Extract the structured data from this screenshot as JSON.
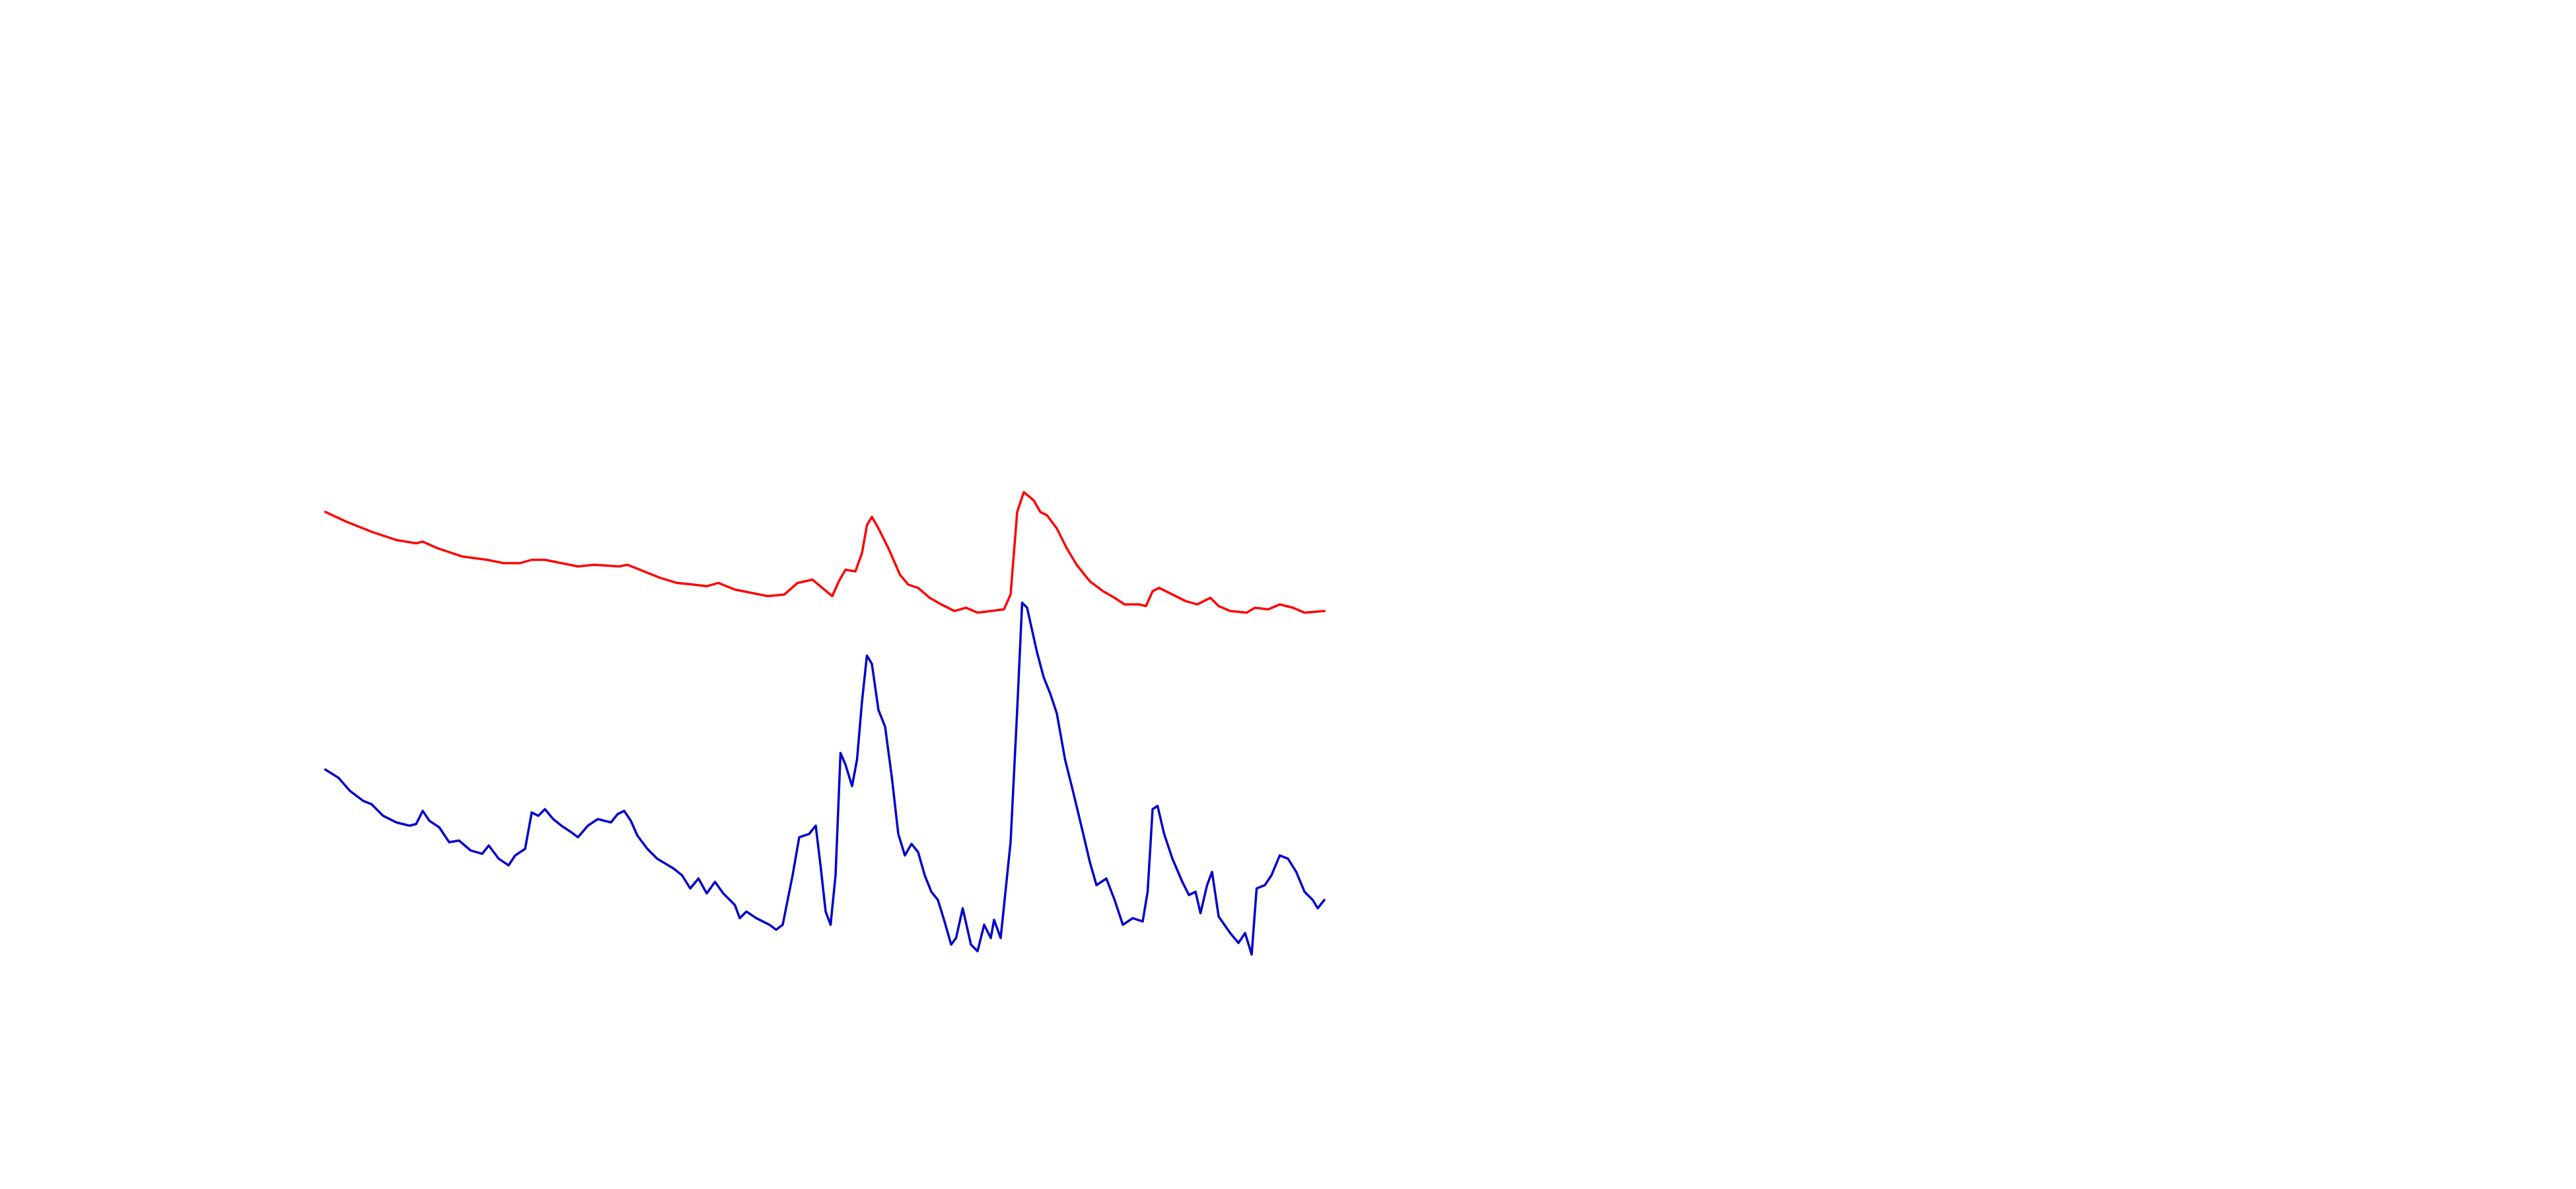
{
  "chart_data": {
    "type": "line",
    "xlim": [
      0,
      1560
    ],
    "ylim": [
      720,
      0
    ],
    "series": [
      {
        "color": "#ff0000",
        "x": [
          197,
          210,
          225,
          240,
          252,
          256,
          265,
          280,
          295,
          305,
          315,
          322,
          330,
          340,
          350,
          360,
          375,
          380,
          390,
          400,
          410,
          420,
          428,
          435,
          445,
          455,
          465,
          475,
          483,
          492,
          498,
          504,
          508,
          512,
          518,
          522,
          525,
          528,
          532,
          538,
          545,
          550,
          556,
          563,
          570,
          578,
          585,
          592,
          600,
          608,
          612,
          616,
          620,
          626,
          630,
          634,
          640,
          646,
          652,
          660,
          668,
          675,
          681,
          690,
          694,
          698,
          702,
          710,
          718,
          725,
          733,
          738,
          745,
          755,
          760,
          768,
          775,
          783,
          790,
          802
        ],
        "values": [
          310,
          316,
          322,
          327,
          329,
          328,
          332,
          337,
          339,
          341,
          341,
          339,
          339,
          341,
          343,
          342,
          343,
          342,
          346,
          350,
          353,
          354,
          355,
          353,
          357,
          359,
          361,
          360,
          353,
          351,
          356,
          361,
          352,
          345,
          346,
          335,
          318,
          313,
          320,
          332,
          348,
          354,
          356,
          362,
          366,
          370,
          368,
          371,
          370,
          369,
          360,
          310,
          298,
          303,
          310,
          312,
          320,
          332,
          342,
          352,
          358,
          362,
          366,
          366,
          367,
          358,
          356,
          360,
          364,
          366,
          362,
          367,
          370,
          371,
          368,
          369,
          366,
          368,
          371,
          370
        ]
      },
      {
        "color": "#0000cc",
        "x": [
          197,
          205,
          212,
          220,
          225,
          232,
          240,
          248,
          252,
          256,
          260,
          266,
          272,
          278,
          285,
          292,
          296,
          302,
          308,
          312,
          318,
          322,
          326,
          330,
          335,
          340,
          346,
          350,
          356,
          362,
          370,
          374,
          378,
          382,
          386,
          392,
          398,
          403,
          408,
          413,
          418,
          423,
          428,
          433,
          438,
          445,
          448,
          452,
          458,
          462,
          466,
          470,
          474,
          480,
          484,
          490,
          494,
          497,
          500,
          503,
          506,
          509,
          512,
          516,
          519,
          522,
          525,
          528,
          532,
          536,
          540,
          544,
          548,
          552,
          556,
          560,
          564,
          568,
          572,
          576,
          579,
          583,
          588,
          592,
          596,
          600,
          602,
          606,
          612,
          616,
          619,
          622,
          628,
          632,
          636,
          640,
          645,
          650,
          656,
          660,
          664,
          670,
          675,
          680,
          686,
          692,
          695,
          698,
          701,
          705,
          710,
          716,
          720,
          724,
          727,
          731,
          734,
          738,
          745,
          750,
          754,
          758,
          761,
          766,
          770,
          775,
          780,
          785,
          790,
          795,
          798,
          802
        ],
        "values": [
          466,
          471,
          479,
          485,
          487,
          494,
          498,
          500,
          499,
          491,
          497,
          501,
          510,
          509,
          515,
          517,
          512,
          520,
          524,
          518,
          514,
          492,
          494,
          490,
          496,
          500,
          504,
          507,
          500,
          496,
          498,
          493,
          491,
          497,
          506,
          514,
          520,
          523,
          526,
          530,
          538,
          532,
          541,
          534,
          541,
          548,
          556,
          552,
          556,
          558,
          560,
          563,
          560,
          530,
          507,
          505,
          500,
          525,
          552,
          560,
          530,
          456,
          463,
          476,
          460,
          425,
          397,
          402,
          430,
          440,
          470,
          505,
          518,
          511,
          516,
          530,
          540,
          545,
          558,
          572,
          568,
          550,
          572,
          576,
          560,
          568,
          557,
          568,
          510,
          430,
          365,
          368,
          395,
          410,
          420,
          432,
          460,
          480,
          505,
          522,
          536,
          532,
          545,
          560,
          556,
          558,
          540,
          490,
          488,
          505,
          520,
          534,
          542,
          540,
          553,
          536,
          528,
          555,
          565,
          571,
          565,
          578,
          538,
          536,
          530,
          518,
          520,
          528,
          540,
          545,
          550,
          545
        ]
      }
    ]
  }
}
